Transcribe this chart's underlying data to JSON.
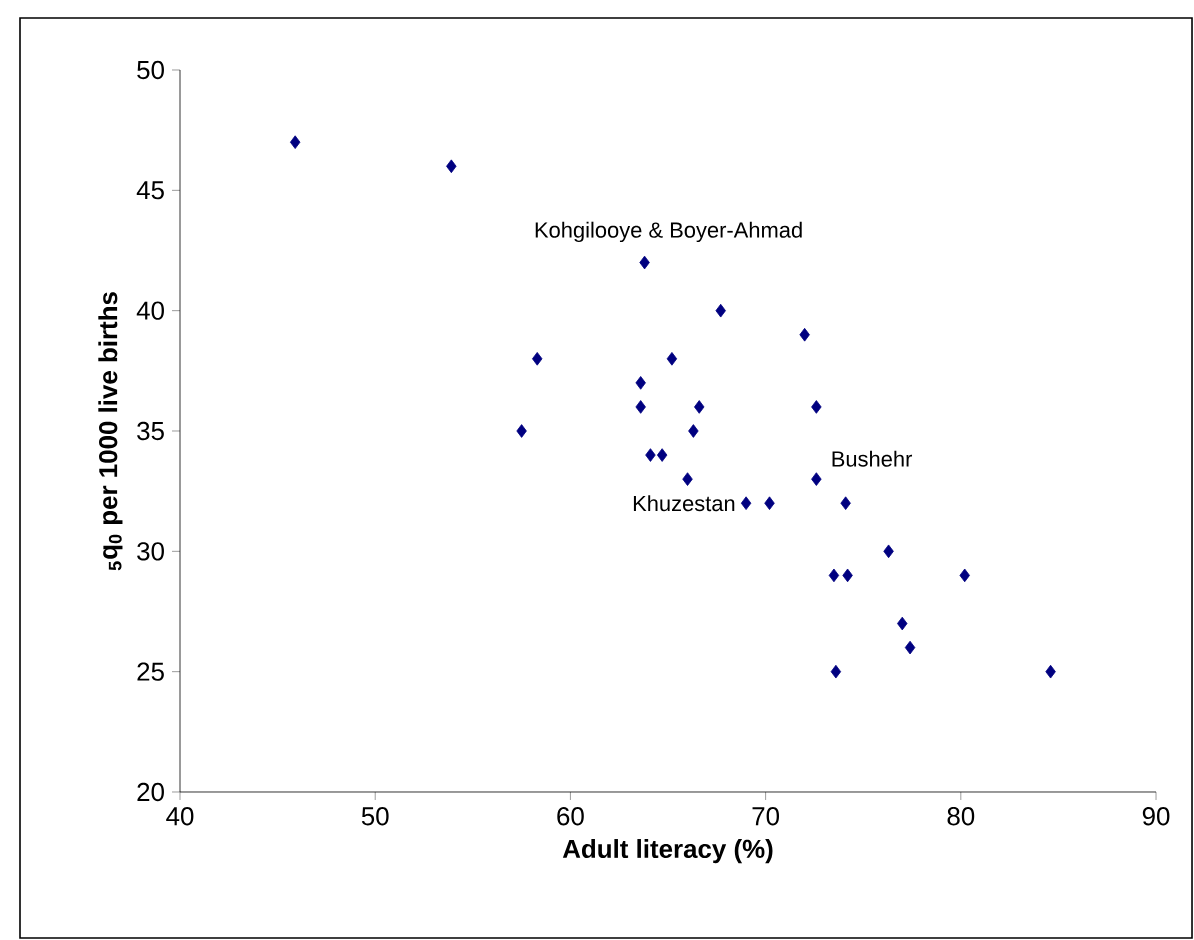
{
  "chart_data": {
    "type": "scatter",
    "xlabel": "Adult literacy (%)",
    "ylabel": "$_{5}$q$_{0}$ per 1000 live births",
    "series": [
      {
        "color": "#000080",
        "x": [
          45.9,
          53.9,
          63.8,
          67.7,
          72.0,
          58.3,
          65.2,
          63.6,
          63.6,
          66.6,
          72.6,
          57.5,
          66.3,
          64.1,
          64.7,
          66.0,
          72.6,
          69.0,
          70.2,
          74.1,
          76.3,
          73.5,
          74.2,
          80.2,
          77.0,
          77.4,
          73.6,
          84.6
        ],
        "values": [
          47,
          46,
          42,
          40,
          39,
          38,
          38,
          37,
          36,
          36,
          36,
          35,
          35,
          34,
          34,
          33,
          33,
          32,
          32,
          32,
          30,
          29,
          29,
          29,
          27,
          26,
          25,
          25
        ]
      }
    ],
    "xlim": [
      40,
      90
    ],
    "ylim": [
      20,
      50
    ],
    "xticks": [
      40,
      50,
      60,
      70,
      80,
      90
    ],
    "yticks": [
      20,
      25,
      30,
      35,
      40,
      45,
      50
    ],
    "marker": "diamond",
    "grid": false,
    "annotations": [
      {
        "text": "Kohgilooye & Boyer-Ahmad",
        "x": 63.8,
        "y": 42
      },
      {
        "text": "Khuzestan",
        "x": 69.0,
        "y": 32
      },
      {
        "text": "Bushehr",
        "x": 72.6,
        "y": 33
      }
    ]
  }
}
